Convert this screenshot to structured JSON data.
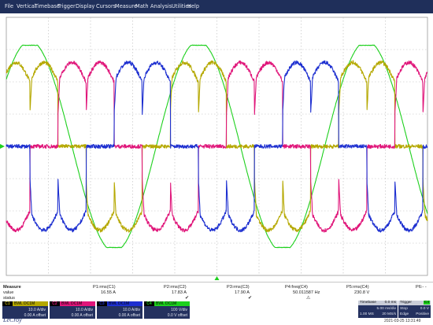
{
  "menu": [
    "File",
    "Vertical",
    "Timebase",
    "Trigger",
    "Display",
    "Cursors",
    "Measure",
    "Math",
    "Analysis",
    "Utilities",
    "Help"
  ],
  "colors": {
    "C1": "#b5a800",
    "C2": "#e0167a",
    "C3": "#1d2fd0",
    "C4": "#1dd01d",
    "panel": "#24315f",
    "menubar": "#1f2f5a"
  },
  "measure": {
    "row_labels": {
      "title": "Measure",
      "value": "value",
      "status": "status"
    },
    "columns": [
      {
        "name": "P1:rms(C1)",
        "value": "16.55 A",
        "status": ""
      },
      {
        "name": "P2:rms(C2)",
        "value": "17.83 A",
        "status": "✔"
      },
      {
        "name": "P3:rms(C3)",
        "value": "17.90 A",
        "status": "✔"
      },
      {
        "name": "P4:freq(C4)",
        "value": "50.011587 Hz",
        "status": "⚠"
      },
      {
        "name": "P5:rms(C4)",
        "value": "230.8 V",
        "status": ""
      },
      {
        "name": "P6:- -",
        "value": "",
        "status": ""
      }
    ]
  },
  "channels": [
    {
      "tag": "C1",
      "name": "BWL DC1M",
      "scale": "10.0 A/div",
      "offset": "0.00 A offset"
    },
    {
      "tag": "C2",
      "name": "BWL DC1M",
      "scale": "10.0 A/div",
      "offset": "0.00 A offset"
    },
    {
      "tag": "C3",
      "name": "BWL DC1M",
      "scale": "10.0 A/div",
      "offset": "0.00 A offset"
    },
    {
      "tag": "C4",
      "name": "BWL DC1M",
      "scale": "100 V/div",
      "offset": "0.0 V offset"
    }
  ],
  "timebase": {
    "label": "Timebase",
    "delay": "0.0 ms",
    "per_div": "5.00 ms/div",
    "samples": "1.00 MS",
    "rate": "20 MS/s"
  },
  "trigger": {
    "label": "Trigger",
    "badge": "C4",
    "mode": "Stop",
    "type": "Edge",
    "value": "0.0 V",
    "slope": "Positive"
  },
  "brand": "LeCroy",
  "timestamp": "2021-03-25 13:31:49",
  "scope": {
    "time_range_ms": [
      -25,
      25
    ],
    "current_scale_A_per_div": 10,
    "voltage_scale_V_per_div": 100,
    "line_frequency_hz": 50.011587,
    "voltage_rms_V": 230.8
  }
}
